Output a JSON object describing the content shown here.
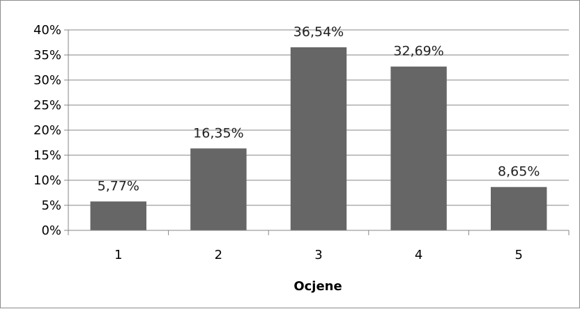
{
  "chart_data": {
    "type": "bar",
    "categories": [
      "1",
      "2",
      "3",
      "4",
      "5"
    ],
    "values": [
      5.77,
      16.35,
      36.54,
      32.69,
      8.65
    ],
    "data_labels": [
      "5,77%",
      "16,35%",
      "36,54%",
      "32,69%",
      "8,65%"
    ],
    "y_ticks": [
      "0%",
      "5%",
      "10%",
      "15%",
      "20%",
      "25%",
      "30%",
      "35%",
      "40%"
    ],
    "y_tick_values": [
      0,
      5,
      10,
      15,
      20,
      25,
      30,
      35,
      40
    ],
    "xlabel": "Ocjene",
    "ylabel": "",
    "ylim": [
      0,
      40
    ],
    "grid": true,
    "legend": "none",
    "colors": {
      "bar": "#666666",
      "grid": "#868686",
      "axis": "#868686"
    }
  }
}
